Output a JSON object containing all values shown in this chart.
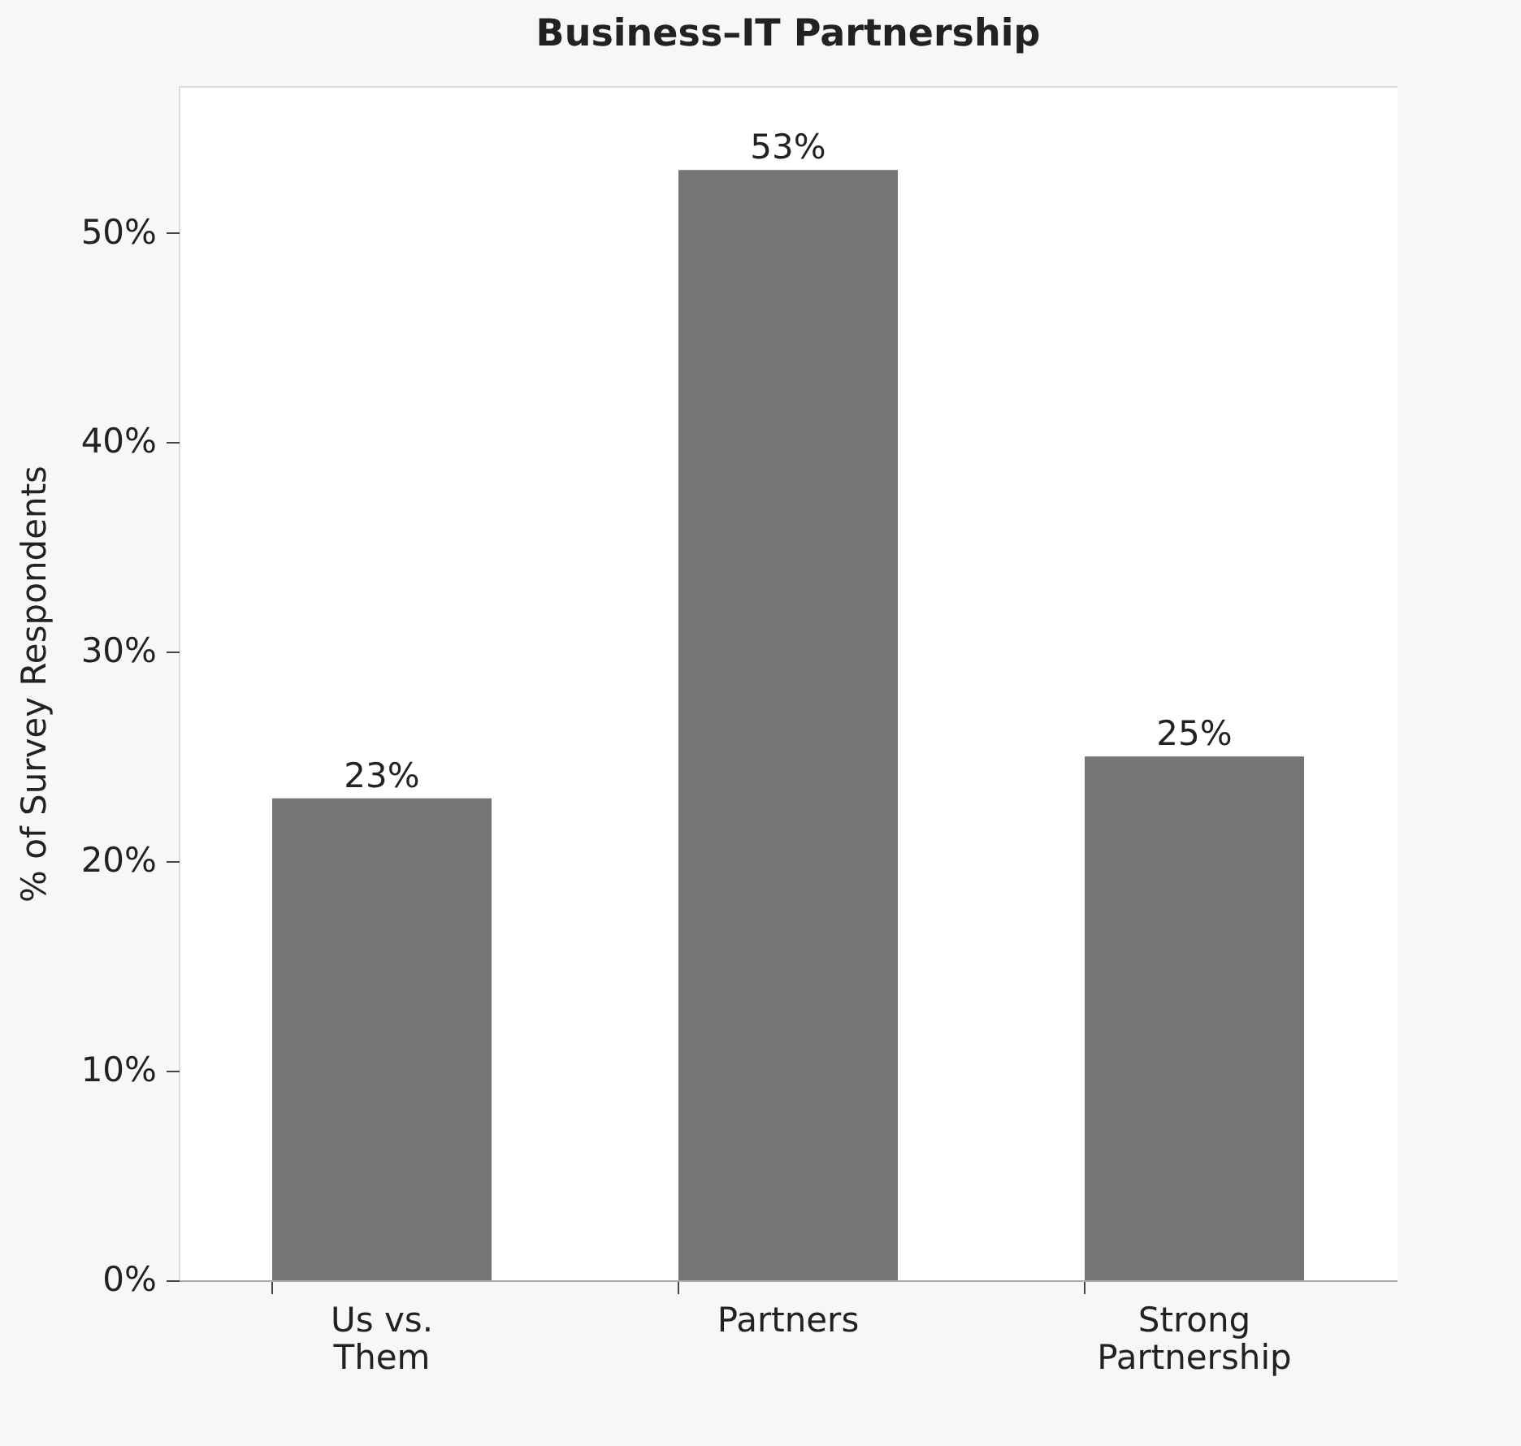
{
  "chart_data": {
    "type": "bar",
    "title": "Business–IT Partnership",
    "ylabel": "% of Survey Respondents",
    "categories": [
      "Us vs. Them",
      "Partners",
      "Strong Partnership"
    ],
    "values": [
      23,
      53,
      25
    ],
    "value_labels": [
      "23%",
      "53%",
      "25%"
    ],
    "color": "#757575",
    "ylim": [
      0,
      57
    ],
    "yticks": [
      {
        "value": 0,
        "label": "0%"
      },
      {
        "value": 10,
        "label": "10%"
      },
      {
        "value": 20,
        "label": "20%"
      },
      {
        "value": 30,
        "label": "30%"
      },
      {
        "value": 40,
        "label": "40%"
      },
      {
        "value": 50,
        "label": "50%"
      }
    ],
    "grid": false
  }
}
